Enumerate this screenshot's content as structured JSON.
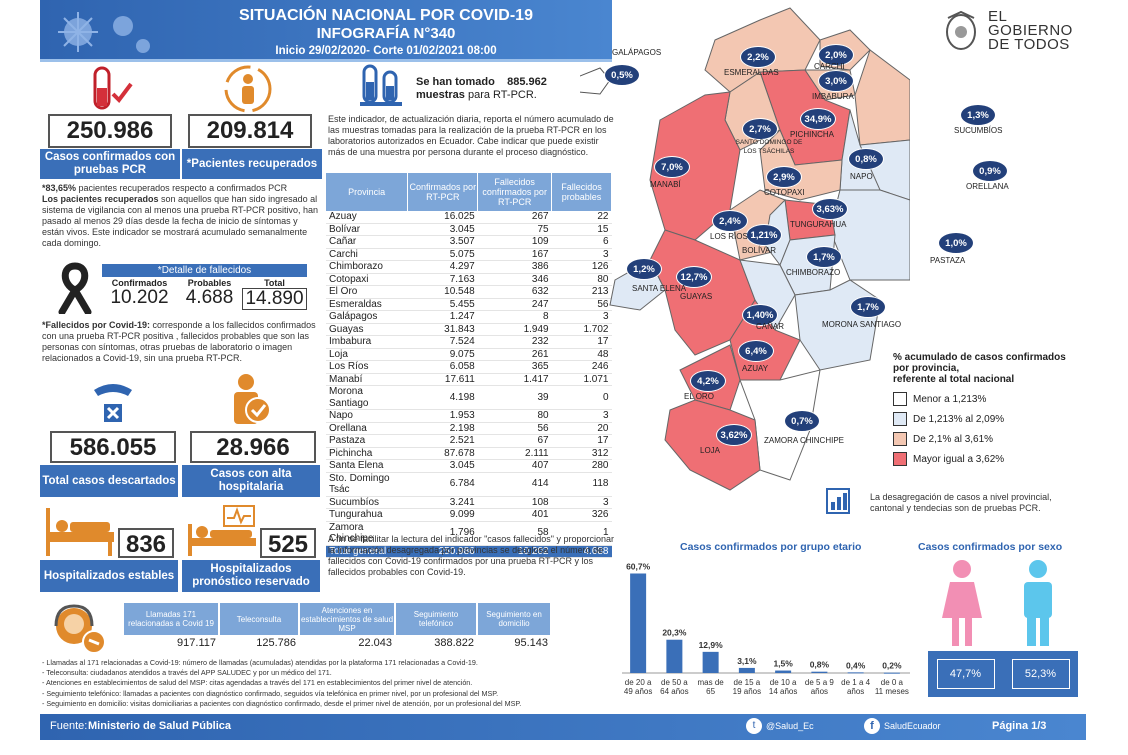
{
  "header": {
    "title": "SITUACIÓN NACIONAL POR COVID-19",
    "subtitle": "INFOGRAFÍA N°340",
    "period": "Inicio 29/02/2020- Corte 01/02/2021 08:00"
  },
  "logo": {
    "line1": "EL",
    "line2": "GOBIERNO",
    "line3": "DE TODOS"
  },
  "confirmed": {
    "value": "250.986",
    "label": "Casos confirmados con pruebas PCR"
  },
  "recovered": {
    "value": "209.814",
    "label": "*Pacientes recuperados"
  },
  "recovered_note": {
    "pct": "*83,65%",
    "text": " pacientes recuperados respecto a confirmados PCR",
    "bold": "Los pacientes recuperados",
    "rest": " son aquellos que han sido ingresado al sistema de vigilancia con al menos una prueba RT-PCR positivo, han pasado al menos 29 días desde la fecha de inicio de síntomas y están vivos. Este indicador se mostrará acumulado semanalmente cada domingo."
  },
  "samples": {
    "prefix": "Se han tomado",
    "value": "885.962",
    "suffix": "muestras",
    "suffix2": "para RT-PCR.",
    "note": "Este indicador, de actualización diaria, reporta el número acumulado de las muestras tomadas para la realización de la prueba RT-PCR en los laboratorios autorizados en Ecuador. Cabe indicar que puede existir más de una muestra por persona durante el proceso diagnóstico."
  },
  "deaths": {
    "title": "*Detalle de fallecidos",
    "h1": "Confirmados",
    "h2": "Probables",
    "h3": "Total",
    "v1": "10.202",
    "v2": "4.688",
    "v3": "14.890",
    "note_bold": "*Fallecidos por Covid-19:",
    "note": " corresponde a los fallecidos confirmados con una prueba RT-PCR positiva , fallecidos probables que son las personas con síntomas, otras pruebas de laboratorio o imagen relacionados a Covid-19, sin una prueba RT-PCR."
  },
  "discarded": {
    "value": "586.055",
    "label": "Total casos descartados"
  },
  "discharged": {
    "value": "28.966",
    "label": "Casos con alta hospitalaria"
  },
  "hosp_stable": {
    "value": "836",
    "label": "Hospitalizados estables"
  },
  "hosp_reserved": {
    "value": "525",
    "label": "Hospitalizados pronóstico reservado"
  },
  "table": {
    "headers": [
      "Provincia",
      "Confirmados por RT-PCR",
      "Fallecidos confirmados por RT-PCR",
      "Fallecidos probables"
    ],
    "rows": [
      [
        "Azuay",
        "16.025",
        "267",
        "22"
      ],
      [
        "Bolívar",
        "3.045",
        "75",
        "15"
      ],
      [
        "Cañar",
        "3.507",
        "109",
        "6"
      ],
      [
        "Carchi",
        "5.075",
        "167",
        "3"
      ],
      [
        "Chimborazo",
        "4.297",
        "386",
        "126"
      ],
      [
        "Cotopaxi",
        "7.163",
        "346",
        "80"
      ],
      [
        "El Oro",
        "10.548",
        "632",
        "213"
      ],
      [
        "Esmeraldas",
        "5.455",
        "247",
        "56"
      ],
      [
        "Galápagos",
        "1.247",
        "8",
        "3"
      ],
      [
        "Guayas",
        "31.843",
        "1.949",
        "1.702"
      ],
      [
        "Imbabura",
        "7.524",
        "232",
        "17"
      ],
      [
        "Loja",
        "9.075",
        "261",
        "48"
      ],
      [
        "Los Ríos",
        "6.058",
        "365",
        "246"
      ],
      [
        "Manabí",
        "17.611",
        "1.417",
        "1.071"
      ],
      [
        "Morona Santiago",
        "4.198",
        "39",
        "0"
      ],
      [
        "Napo",
        "1.953",
        "80",
        "3"
      ],
      [
        "Orellana",
        "2.198",
        "56",
        "20"
      ],
      [
        "Pastaza",
        "2.521",
        "67",
        "17"
      ],
      [
        "Pichincha",
        "87.678",
        "2.111",
        "312"
      ],
      [
        "Santa Elena",
        "3.045",
        "407",
        "280"
      ],
      [
        "Sto. Domingo Tsác",
        "6.784",
        "414",
        "118"
      ],
      [
        "Sucumbíos",
        "3.241",
        "108",
        "3"
      ],
      [
        "Tungurahua",
        "9.099",
        "401",
        "326"
      ],
      [
        "Zamora Chinchipe",
        "1.796",
        "58",
        "1"
      ]
    ],
    "total": [
      "Total general",
      "250.986",
      "10.202",
      "4.688"
    ]
  },
  "table_note": "A fin de facilitar la lectura del indicador \"casos fallecidos\" y proporcionar la información desagregada por provincias se desglosa el número de fallecidos con Covid-19 confirmados por una prueba RT-PCR y los fallecidos probables con Covid-19.",
  "phone": {
    "headers": [
      "Llamadas 171 relacionadas a Covid 19",
      "Teleconsulta",
      "Atenciones en establecimientos de salud MSP",
      "Seguimiento telefónico",
      "Seguimiento en domicilio"
    ],
    "values": [
      "917.117",
      "125.786",
      "22.043",
      "388.822",
      "95.143"
    ],
    "notes": [
      "- Llamadas al 171 relacionadas a Covid-19: número de llamadas (acumuladas) atendidas por la plataforma 171 relacionadas a Covid-19.",
      "- Teleconsulta: ciudadanos atendidos a través del APP SALUDEC y por un médico del 171.",
      "- Atenciones en establecimientos de salud del MSP: citas agendadas a través del 171 en establecimientos del primer nivel de atención.",
      "- Seguimiento telefónico: llamadas a pacientes con diagnóstico confirmado, seguidos vía telefónica en primer nivel, por un profesional del MSP.",
      "- Seguimiento en domicilio: visitas domiciliarias a pacientes con diagnóstico confirmado, desde el primer nivel de atención, por un profesional del MSP."
    ]
  },
  "map": {
    "legend_title1": "% acumulado de casos confirmados",
    "legend_title2": "por provincia,",
    "legend_title3": "referente al total nacional",
    "legend": [
      {
        "label": "Menor a 1,213%",
        "color": "#ffffff"
      },
      {
        "label": "De 1,213% al 2,09%",
        "color": "#dfe9f5"
      },
      {
        "label": "De 2,1% al 3,61%",
        "color": "#f3c7b2"
      },
      {
        "label": "Mayor igual a 3,62%",
        "color": "#ef6f74"
      }
    ],
    "note": "La desagregación de casos a nivel provincial, cantonal y tendecias son de pruebas PCR.",
    "provinces": [
      {
        "name": "GALÁPAGOS",
        "pct": "0,5%"
      },
      {
        "name": "ESMERALDAS",
        "pct": "2,2%"
      },
      {
        "name": "CARCHI",
        "pct": "2,0%"
      },
      {
        "name": "IMBABURA",
        "pct": "3,0%"
      },
      {
        "name": "SUCUMBÍOS",
        "pct": "1,3%"
      },
      {
        "name": "PICHINCHA",
        "pct": "34,9%"
      },
      {
        "name": "SANTO DOMINGO DE LOS TSÁCHILAS",
        "pct": "2,7%"
      },
      {
        "name": "MANABÍ",
        "pct": "7,0%"
      },
      {
        "name": "NAPO",
        "pct": "0,8%"
      },
      {
        "name": "ORELLANA",
        "pct": "0,9%"
      },
      {
        "name": "COTOPAXI",
        "pct": "2,9%"
      },
      {
        "name": "TUNGURAHUA",
        "pct": "3,63%"
      },
      {
        "name": "LOS RÍOS",
        "pct": "2,4%"
      },
      {
        "name": "BOLÍVAR",
        "pct": "1,21%"
      },
      {
        "name": "CHIMBORAZO",
        "pct": "1,7%"
      },
      {
        "name": "PASTAZA",
        "pct": "1,0%"
      },
      {
        "name": "SANTA ELENA",
        "pct": "1,2%"
      },
      {
        "name": "GUAYAS",
        "pct": "12,7%"
      },
      {
        "name": "CAÑAR",
        "pct": "1,40%"
      },
      {
        "name": "MORONA SANTIAGO",
        "pct": "1,7%"
      },
      {
        "name": "AZUAY",
        "pct": "6,4%"
      },
      {
        "name": "EL ORO",
        "pct": "4,2%"
      },
      {
        "name": "ZAMORA CHINCHIPE",
        "pct": "0,7%"
      },
      {
        "name": "LOJA",
        "pct": "3,62%"
      }
    ]
  },
  "chart_data": [
    {
      "type": "bar",
      "title": "Casos confirmados por grupo etario",
      "categories": [
        "de 20 a 49 años",
        "de 50 a 64 años",
        "mas de 65",
        "de 15 a 19 años",
        "de 10 a 14 años",
        "de 5 a 9 años",
        "de 1 a 4 años",
        "de 0 a 11 meses"
      ],
      "values": [
        60.7,
        20.3,
        12.9,
        3.1,
        1.5,
        0.8,
        0.4,
        0.2
      ],
      "labels": [
        "60,7%",
        "20,3%",
        "12,9%",
        "3,1%",
        "1,5%",
        "0,8%",
        "0,4%",
        "0,2%"
      ]
    },
    {
      "type": "bar",
      "title": "Casos confirmados por sexo",
      "categories": [
        "Mujeres",
        "Hombres"
      ],
      "values": [
        47.7,
        52.3
      ],
      "labels": [
        "47,7%",
        "52,3%"
      ],
      "colors": [
        "#f28fb4",
        "#5cc6ec"
      ]
    }
  ],
  "footer": {
    "source_label": "Fuente:",
    "source": "Ministerio de Salud Pública",
    "twitter": "@Salud_Ec",
    "facebook": "SaludEcuador",
    "page": "Página 1/3"
  }
}
